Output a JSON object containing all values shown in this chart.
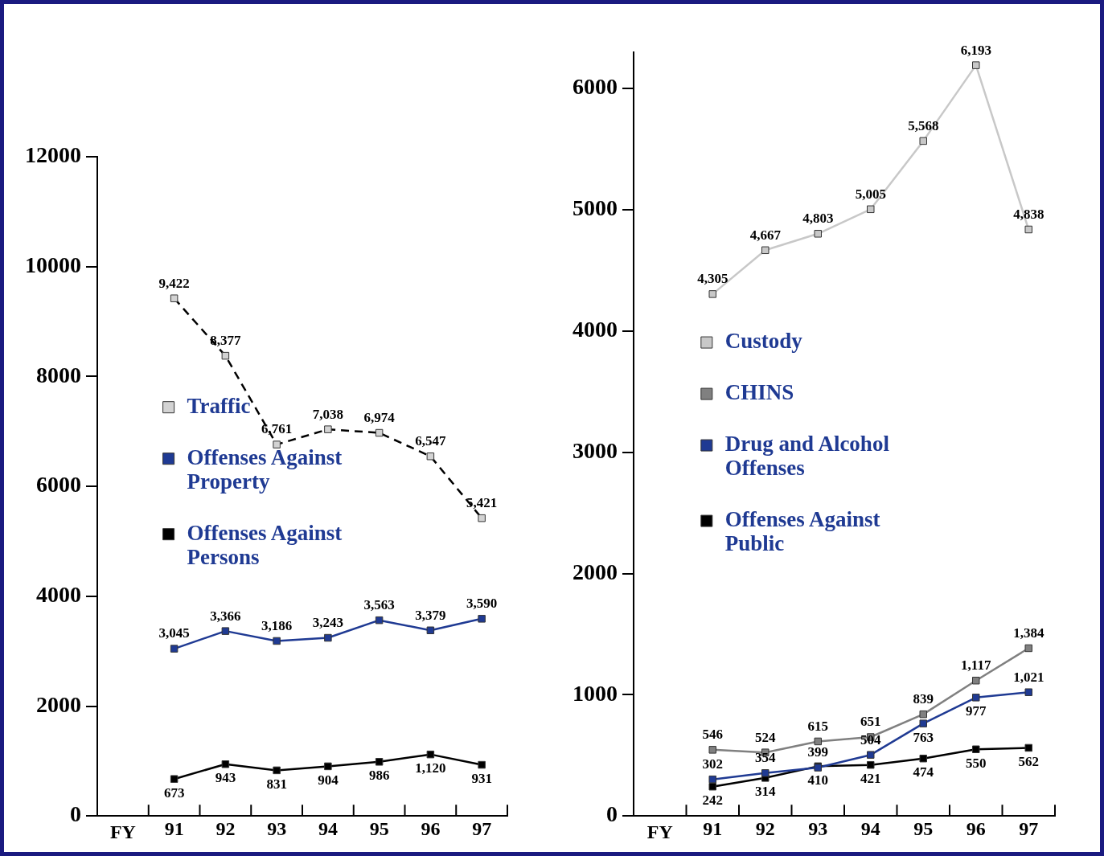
{
  "chart_data": [
    {
      "type": "line",
      "xlabel": "FY",
      "categories": [
        "91",
        "92",
        "93",
        "94",
        "95",
        "96",
        "97"
      ],
      "ylim": [
        0,
        12000
      ],
      "yticks": [
        0,
        2000,
        4000,
        6000,
        8000,
        10000,
        12000
      ],
      "grid": false,
      "legend": "left",
      "marker": "square",
      "series": [
        {
          "name": "Traffic",
          "color": "#000000",
          "colors": [
            "#d3d3d3",
            "#d3d3d3",
            "#d3d3d3",
            "#d3d3d3",
            "#d3d3d3",
            "#d3d3d3",
            "#d3d3d3"
          ],
          "line_style": "dashed",
          "values": [
            9422,
            8377,
            6761,
            7038,
            6974,
            6547,
            5421
          ],
          "value_labels": [
            "9,422",
            "8,377",
            "6,761",
            "7,038",
            "6,974",
            "6,547",
            "5,421"
          ]
        },
        {
          "name": "Offenses Against Property",
          "color": "#1f3a93",
          "line_style": "solid",
          "values": [
            3045,
            3366,
            3186,
            3243,
            3563,
            3379,
            3590
          ],
          "value_labels": [
            "3,045",
            "3,366",
            "3,186",
            "3,243",
            "3,563",
            "3,379",
            "3,590"
          ]
        },
        {
          "name": "Offenses Against Persons",
          "color": "#000000",
          "line_style": "solid",
          "values": [
            673,
            943,
            831,
            904,
            986,
            1120,
            931
          ],
          "value_labels": [
            "673",
            "943",
            "831",
            "904",
            "986",
            "1,120",
            "931"
          ]
        }
      ]
    },
    {
      "type": "line",
      "xlabel": "FY",
      "categories": [
        "91",
        "92",
        "93",
        "94",
        "95",
        "96",
        "97"
      ],
      "ylim": [
        0,
        6300
      ],
      "yticks": [
        0,
        1000,
        2000,
        3000,
        4000,
        5000,
        6000
      ],
      "grid": false,
      "legend": "left",
      "marker": "square",
      "series": [
        {
          "name": "Custody",
          "color": "#c8c8c8",
          "line_style": "solid",
          "values": [
            4305,
            4667,
            4803,
            5005,
            5568,
            6193,
            4838
          ],
          "value_labels": [
            "4,305",
            "4,667",
            "4,803",
            "5,005",
            "5,568",
            "6,193",
            "4,838"
          ]
        },
        {
          "name": "CHINS",
          "color": "#808080",
          "line_style": "solid",
          "values": [
            546,
            524,
            615,
            651,
            839,
            1117,
            1384
          ],
          "value_labels": [
            "546",
            "524",
            "615",
            "651",
            "839",
            "1,117",
            "1,384"
          ]
        },
        {
          "name": "Drug and Alcohol Offenses",
          "color": "#1f3a93",
          "line_style": "solid",
          "values": [
            302,
            354,
            399,
            504,
            763,
            977,
            1021
          ],
          "value_labels": [
            "302",
            "354",
            "399",
            "504",
            "763",
            "977",
            "1,021"
          ]
        },
        {
          "name": "Offenses Against Public",
          "color": "#000000",
          "line_style": "solid",
          "values": [
            242,
            314,
            410,
            421,
            474,
            550,
            562
          ],
          "value_labels": [
            "242",
            "314",
            "410",
            "421",
            "474",
            "550",
            "562"
          ]
        }
      ]
    }
  ]
}
